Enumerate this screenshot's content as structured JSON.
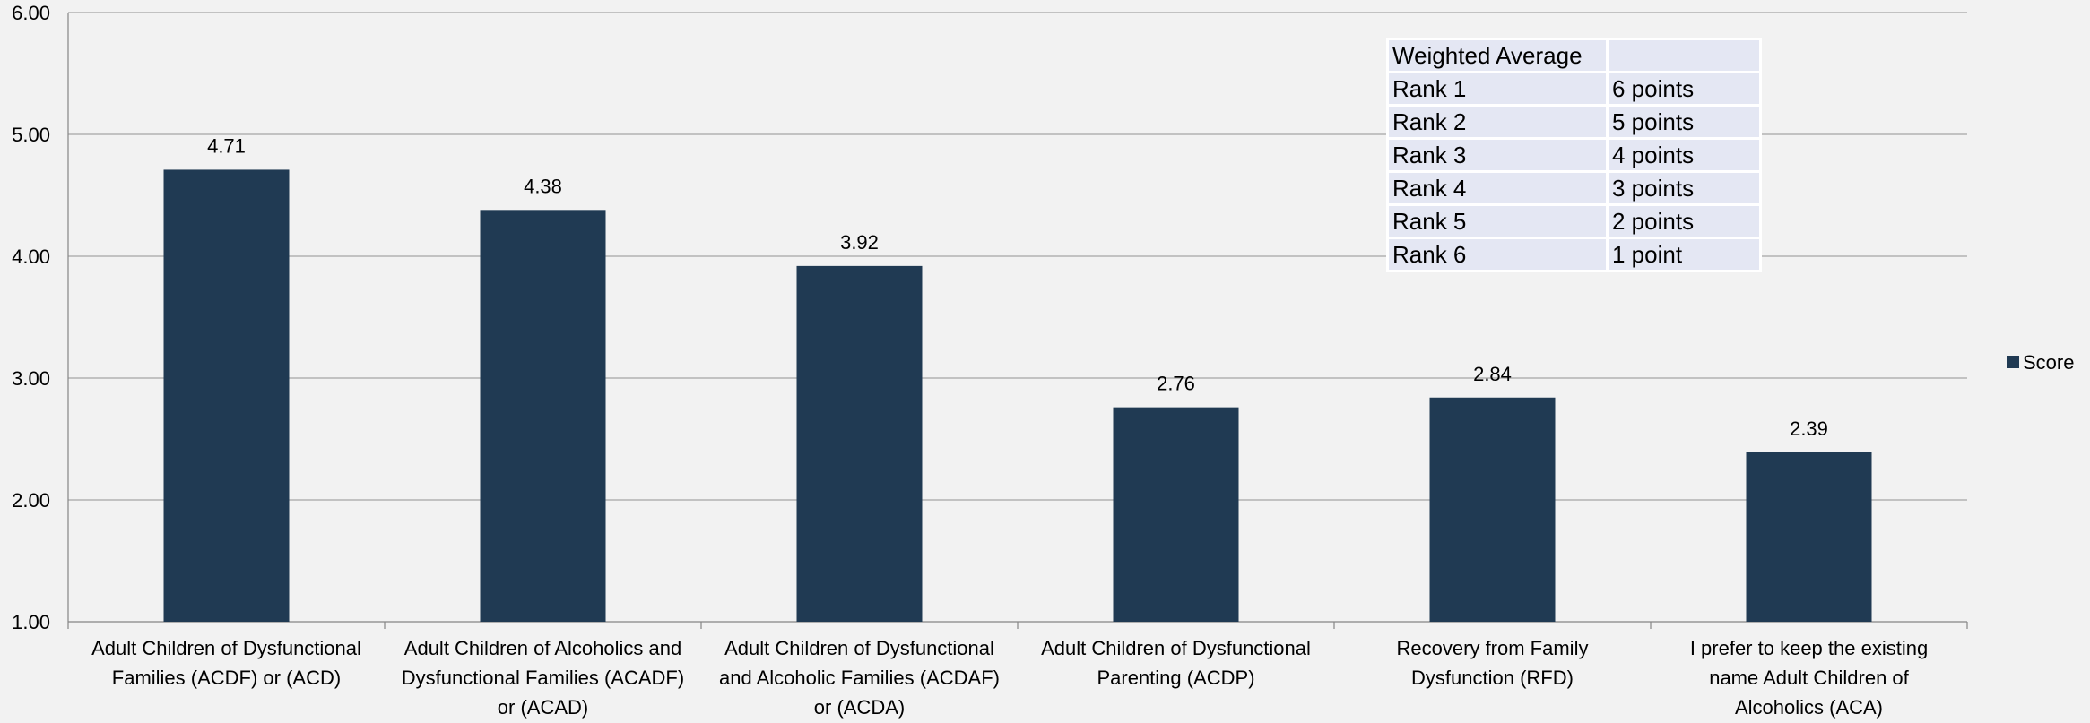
{
  "chart_data": {
    "type": "bar",
    "categories": [
      [
        "Adult Children of Dysfunctional",
        "Families (ACDF) or (ACD)"
      ],
      [
        "Adult Children of Alcoholics and",
        "Dysfunctional Families (ACADF)",
        "or (ACAD)"
      ],
      [
        "Adult Children of Dysfunctional",
        "and Alcoholic Families (ACDAF)",
        "or (ACDA)"
      ],
      [
        "Adult Children of Dysfunctional",
        "Parenting (ACDP)"
      ],
      [
        "Recovery from Family",
        "Dysfunction (RFD)"
      ],
      [
        "I prefer to keep the existing",
        "name Adult Children of",
        "Alcoholics (ACA)"
      ]
    ],
    "series": [
      {
        "name": "Score",
        "values": [
          4.71,
          4.38,
          3.92,
          2.76,
          2.84,
          2.39
        ],
        "color": "#203a53"
      }
    ],
    "data_labels": [
      "4.71",
      "4.38",
      "3.92",
      "2.76",
      "2.84",
      "2.39"
    ],
    "ylim": [
      1,
      6
    ],
    "y_ticks": [
      "1.00",
      "2.00",
      "3.00",
      "4.00",
      "5.00",
      "6.00"
    ],
    "grid": true,
    "legend": {
      "position": "right",
      "entries": [
        "Score"
      ]
    },
    "title": "",
    "xlabel": "",
    "ylabel": ""
  },
  "weights_table": {
    "header": [
      "Weighted Average",
      ""
    ],
    "rows": [
      [
        "Rank 1",
        "6 points"
      ],
      [
        "Rank 2",
        "5 points"
      ],
      [
        "Rank 3",
        "4 points"
      ],
      [
        "Rank 4",
        "3 points"
      ],
      [
        "Rank 5",
        "2 points"
      ],
      [
        "Rank 6",
        "1 point"
      ]
    ]
  }
}
